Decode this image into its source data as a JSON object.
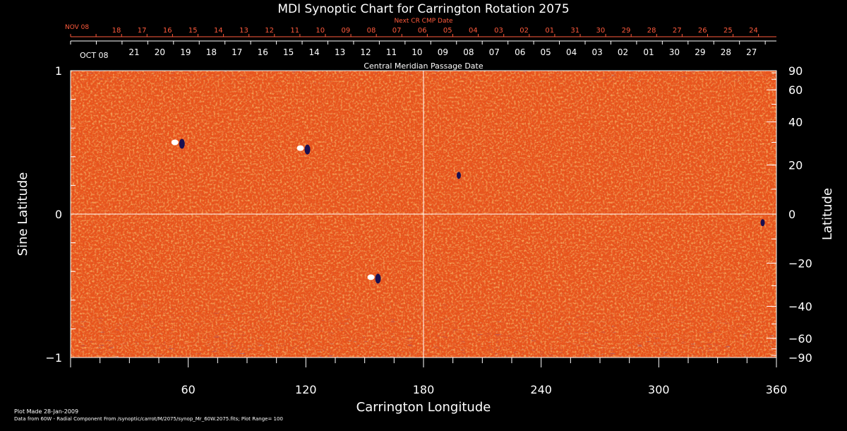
{
  "chart_data": {
    "type": "heatmap",
    "title": "MDI Synoptic Chart for Carrington Rotation 2075",
    "top_axis_label": "Next CR CMP Date",
    "top_axis_start": "NOV 08",
    "top_axis_ticks": [
      "18",
      "17",
      "16",
      "15",
      "14",
      "13",
      "12",
      "11",
      "10",
      "09",
      "08",
      "07",
      "06",
      "05",
      "04",
      "03",
      "02",
      "01",
      "31",
      "30",
      "29",
      "28",
      "27",
      "26",
      "25",
      "24"
    ],
    "mid_axis_start": "OCT 08",
    "mid_axis_ticks": [
      "21",
      "20",
      "19",
      "18",
      "17",
      "16",
      "15",
      "14",
      "13",
      "12",
      "11",
      "10",
      "09",
      "08",
      "07",
      "06",
      "05",
      "04",
      "03",
      "02",
      "01",
      "30",
      "29",
      "28",
      "27"
    ],
    "cmp_label": "Central Meridian Passage Date",
    "xlabel": "Carrington Longitude",
    "xlim": [
      0,
      360
    ],
    "xticks": [
      60,
      120,
      180,
      240,
      300,
      360
    ],
    "ylabel_left": "Sine Latitude",
    "ylim": [
      -1,
      1
    ],
    "yticks_left": [
      "1",
      "0",
      "−1"
    ],
    "ylabel_right": "Latitude",
    "yticks_right": [
      90,
      60,
      40,
      20,
      0,
      -20,
      -40,
      -60,
      -90
    ],
    "plot_range": 100,
    "active_regions": [
      {
        "lon": 55,
        "sinlat": 0.5,
        "polarity": "mixed"
      },
      {
        "lon": 119,
        "sinlat": 0.46,
        "polarity": "mixed"
      },
      {
        "lon": 198,
        "sinlat": 0.27,
        "polarity": "negative"
      },
      {
        "lon": 155,
        "sinlat": -0.44,
        "polarity": "mixed"
      },
      {
        "lon": 353,
        "sinlat": -0.06,
        "polarity": "negative"
      }
    ],
    "colors": {
      "background": "#000000",
      "field_base": "#e8541c",
      "positive": "#ffffff",
      "negative": "#1a1050",
      "top_axis": "#ff5a3c",
      "axes": "#ffffff"
    }
  },
  "footer": {
    "plot_made": "Plot Made 28-Jan-2009",
    "data_source": "Data from 60W - Radial Component From /synoptic/carrot/M/2075/synop_Mr_60W.2075.fits; Plot Range=  100"
  }
}
